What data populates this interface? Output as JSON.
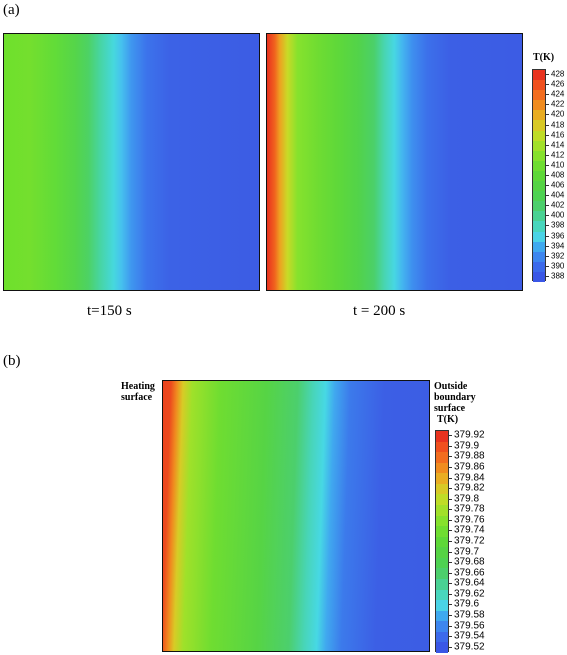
{
  "panel_a": {
    "label": "(a)",
    "caption_left": "t=150 s",
    "caption_right": "t = 200 s",
    "colorbar_title": "T(K)",
    "colorbar_ticks": [
      "428",
      "426",
      "424",
      "422",
      "420",
      "418",
      "416",
      "414",
      "412",
      "410",
      "408",
      "406",
      "404",
      "402",
      "400",
      "398",
      "396",
      "394",
      "392",
      "390",
      "388"
    ]
  },
  "panel_b": {
    "label": "(b)",
    "left_label": "Heating surface",
    "right_label": "Outside boundary surface",
    "colorbar_title": "T(K)",
    "colorbar_ticks": [
      "379.92",
      "379.9",
      "379.88",
      "379.86",
      "379.84",
      "379.82",
      "379.8",
      "379.78",
      "379.76",
      "379.74",
      "379.72",
      "379.7",
      "379.68",
      "379.66",
      "379.64",
      "379.62",
      "379.6",
      "379.58",
      "379.56",
      "379.54",
      "379.52"
    ]
  },
  "colors": {
    "palette_top_to_bottom": [
      "#e8331f",
      "#f0501e",
      "#f26d1f",
      "#f08c1f",
      "#e9ad22",
      "#d8c926",
      "#bfdc27",
      "#a2e02a",
      "#86e12d",
      "#6fdd31",
      "#5ed838",
      "#55d344",
      "#4ed252",
      "#4ccf6c",
      "#49d193",
      "#48d6bd",
      "#4ad3e6",
      "#3fa9ef",
      "#3d86ef",
      "#3c6aeb",
      "#3a57e6"
    ],
    "field_blue": "#3e5fe4"
  }
}
